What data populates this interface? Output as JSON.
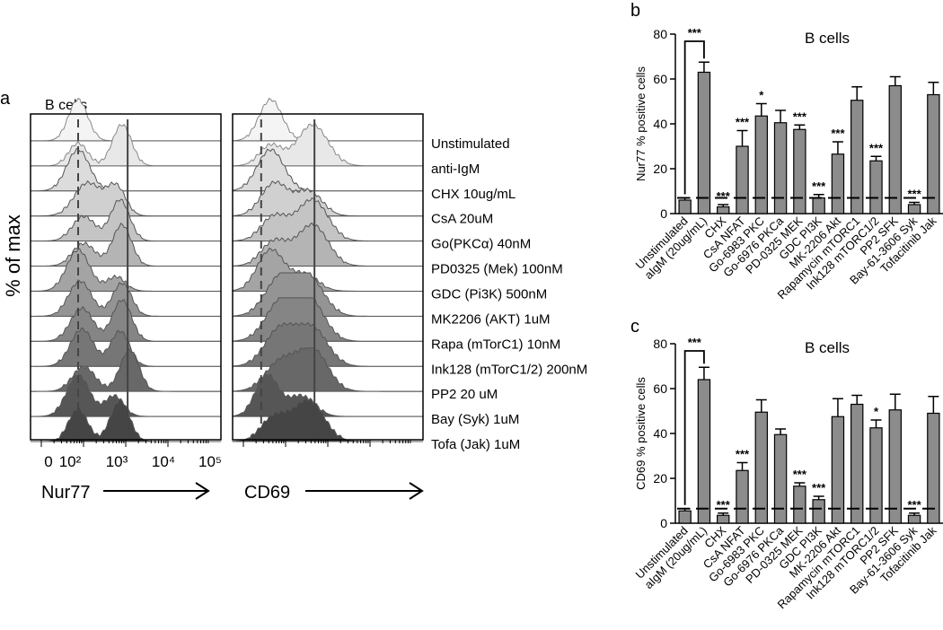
{
  "chart_data": [
    {
      "panel": "a",
      "type": "area",
      "title": "B cells",
      "xlabel_left": "Nur77",
      "xlabel_right": "CD69",
      "ylabel": "% of max",
      "x_tick_labels": [
        "0",
        "10²",
        "10³",
        "10⁴",
        "10⁵"
      ],
      "scale": "log",
      "conditions": [
        "Unstimulated",
        "anti-IgM",
        "CHX 10ug/mL",
        "CsA 20uM",
        "Go(PKCα) 40nM",
        "PD0325 (Mek) 100nM",
        "GDC (Pi3K) 500nM",
        "MK2206 (AKT) 1uM",
        "Rapa (mTorC1) 10nM",
        "Ink128 (mTorC1/2) 200nM",
        "PP2 20 uM",
        "Bay (Syk) 1uM",
        "Tofa (Jak) 1uM"
      ],
      "fills": [
        "#f4f4f4",
        "#e8e8e8",
        "#dcdcdc",
        "#d0d0d0",
        "#c4c4c4",
        "#b4b4b4",
        "#a4a4a4",
        "#949494",
        "#858585",
        "#767676",
        "#686868",
        "#565656",
        "#454545"
      ]
    },
    {
      "panel": "b",
      "type": "bar",
      "title": "B cells",
      "ylabel": "Nur77 % positive cells",
      "ylim": [
        0,
        80
      ],
      "yticks": [
        0,
        20,
        40,
        60,
        80
      ],
      "baseline": 7,
      "categories": [
        "Unstimulated",
        "aIgM (20ug/mL)",
        "CHX",
        "CsA NFAT",
        "Go-6983 PKC",
        "Go-6976 PKCa",
        "PD-0325 MEK",
        "GDC PI3K",
        "MK-2206 Akt",
        "Rapamycin mTORC1",
        "Ink128 mTORC1/2",
        "PP2 SFK",
        "Bay-61-3606 Syk",
        "Tofacitinib Jak"
      ],
      "values": [
        6,
        63,
        3,
        30,
        43.5,
        40.5,
        37.5,
        7,
        26.5,
        50.5,
        23.5,
        57,
        4,
        53
      ],
      "errors": [
        1,
        4.5,
        1,
        7,
        5.5,
        5.5,
        2,
        1.5,
        5.5,
        6,
        2,
        4,
        1,
        5.5
      ],
      "significance": [
        "",
        "",
        "***",
        "***",
        "*",
        "",
        "***",
        "***",
        "***",
        "",
        "***",
        "",
        "***",
        ""
      ],
      "bracket_label": "***"
    },
    {
      "panel": "c",
      "type": "bar",
      "title": "B cells",
      "ylabel": "CD69 % positive cells",
      "ylim": [
        0,
        80
      ],
      "yticks": [
        0,
        20,
        40,
        60,
        80
      ],
      "baseline": 6.5,
      "categories": [
        "Unstimulated",
        "aIgM (20ug/mL)",
        "CHX",
        "CsA NFAT",
        "Go-6983 PKC",
        "Go-6976 PKCa",
        "PD-0325 MEK",
        "GDC PI3K",
        "MK-2206 Akt",
        "Rapamycin mTORC1",
        "Ink128 mTORC1/2",
        "PP2 SFK",
        "Bay-61-3606 Syk",
        "Tofacitinib Jak"
      ],
      "values": [
        5.5,
        64,
        3.5,
        23.5,
        49.5,
        39.5,
        16.5,
        10.5,
        47.5,
        53,
        42.5,
        50.5,
        3.5,
        49
      ],
      "errors": [
        1,
        5.5,
        1,
        3.5,
        5.5,
        2.5,
        1.5,
        1.5,
        8,
        4,
        3.5,
        7,
        1,
        7.5
      ],
      "significance": [
        "",
        "",
        "***",
        "***",
        "",
        "",
        "***",
        "***",
        "",
        "",
        "*",
        "",
        "***",
        ""
      ],
      "bracket_label": "***"
    }
  ]
}
